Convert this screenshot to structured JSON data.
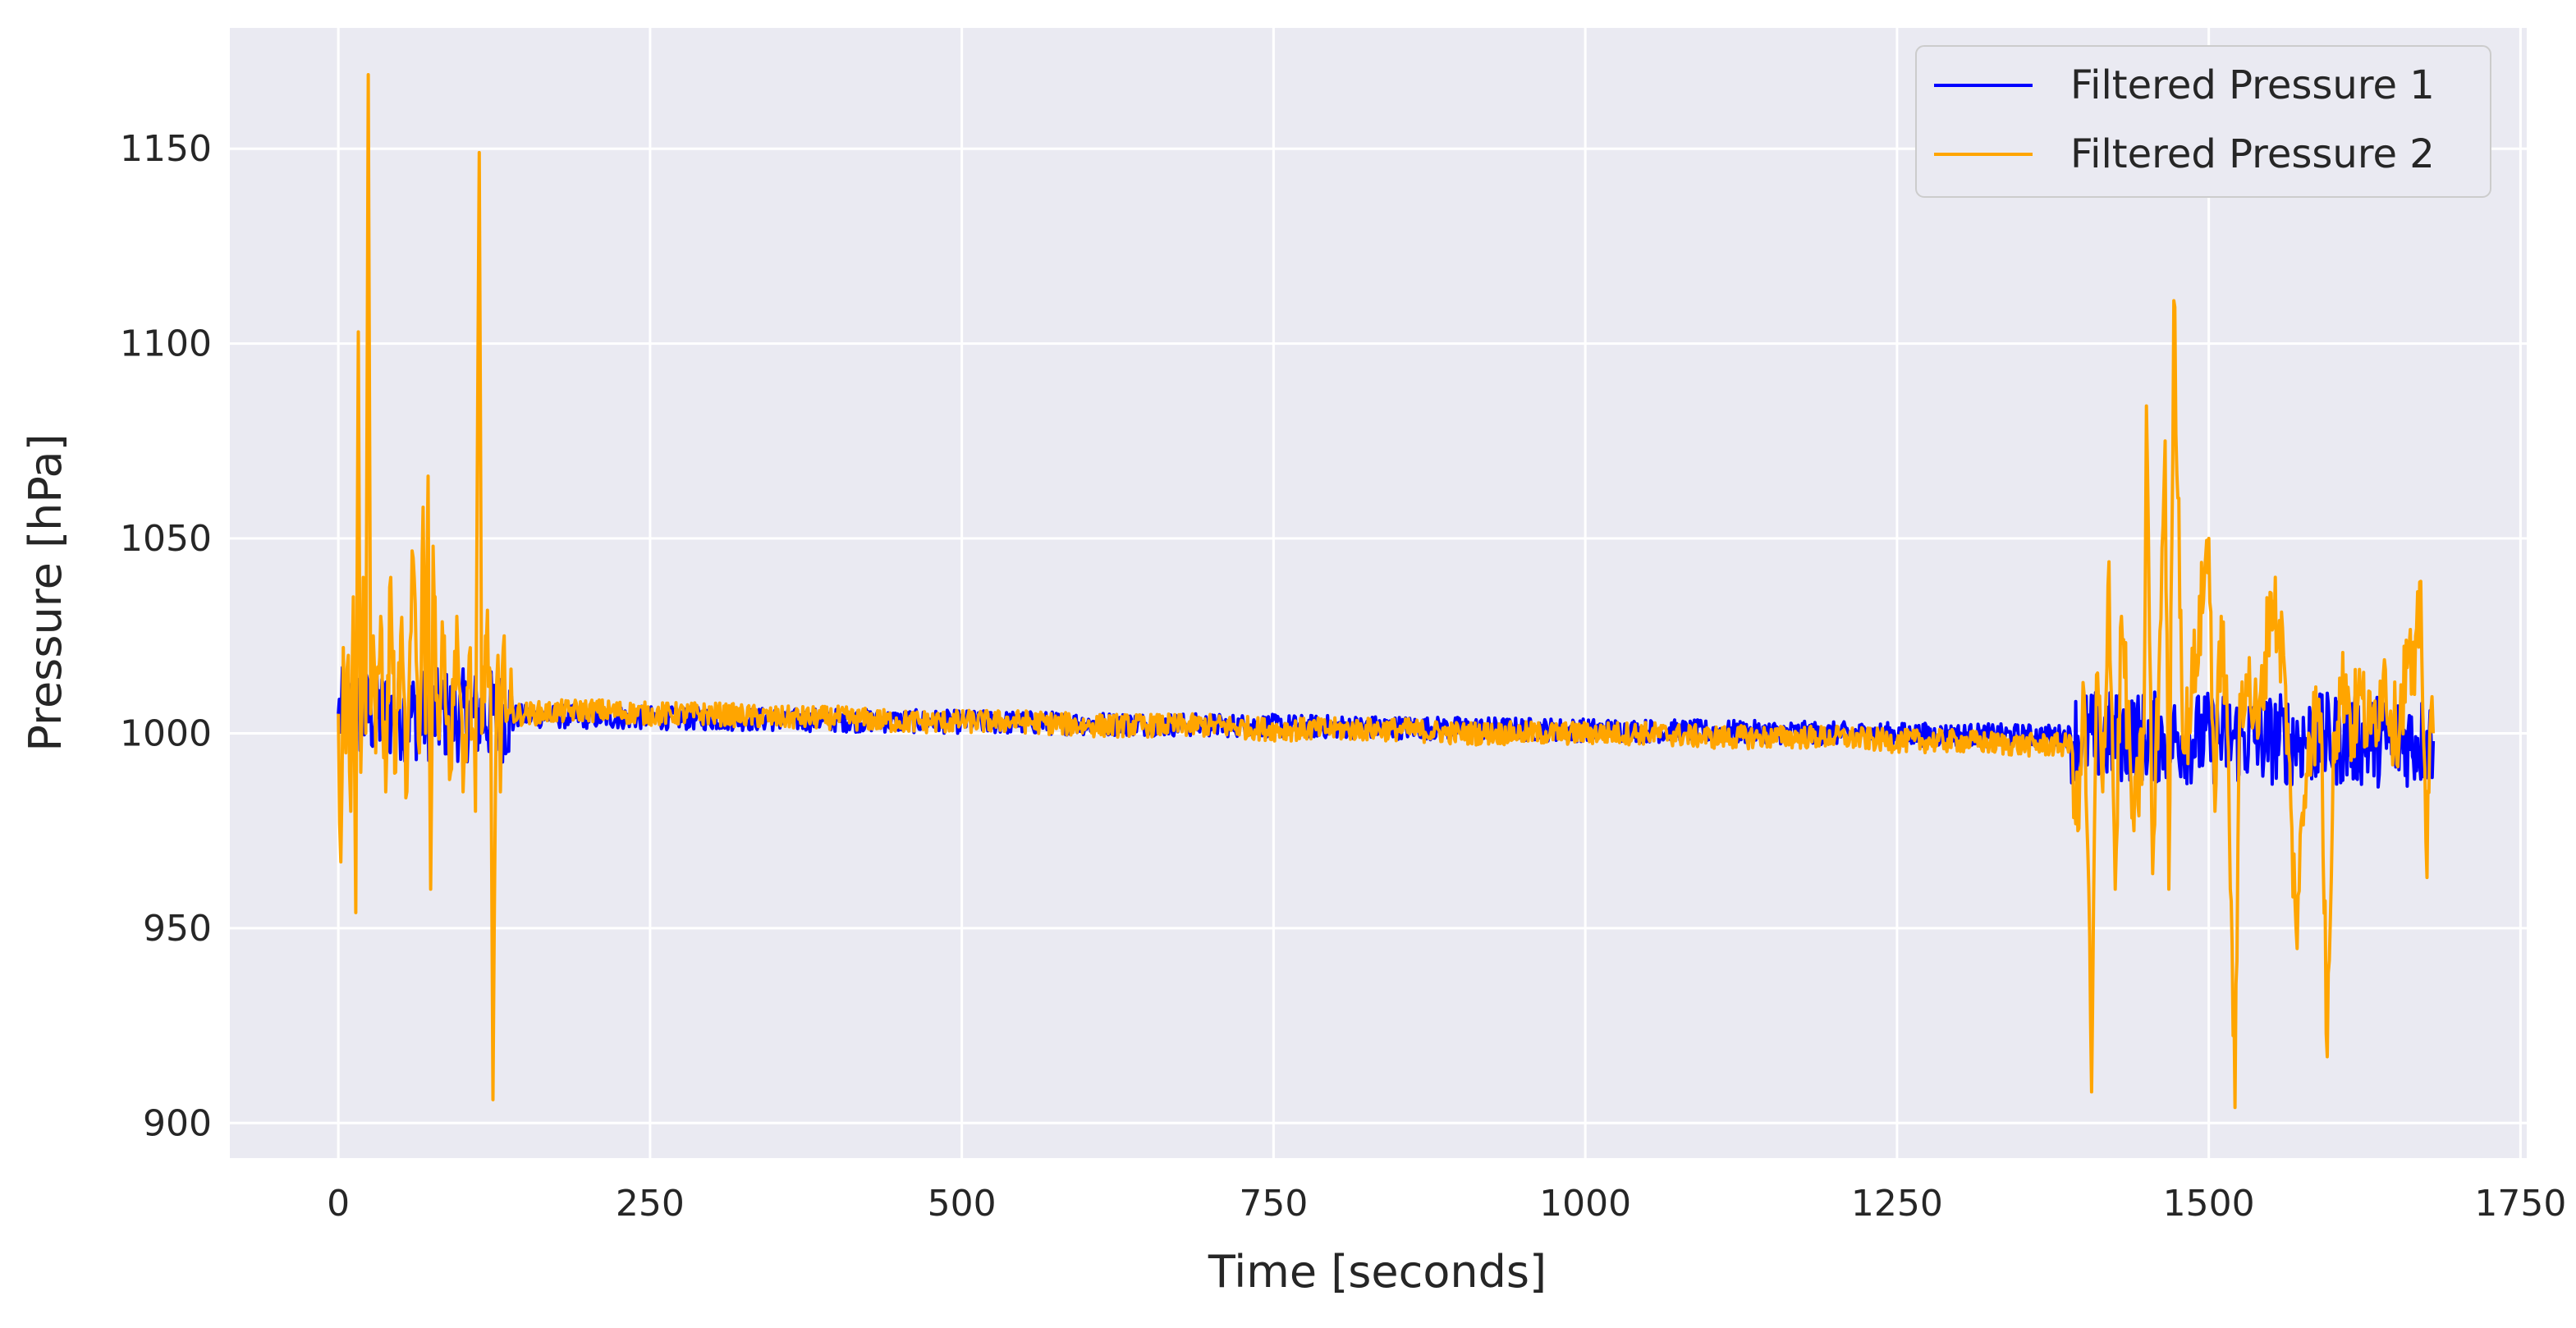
{
  "chart_data": {
    "type": "line",
    "title": "",
    "xlabel": "Time [seconds]",
    "ylabel": "Pressure [hPa]",
    "xlim": [
      -87,
      1755
    ],
    "ylim": [
      891,
      1181
    ],
    "x_ticks": [
      "0",
      "250",
      "500",
      "750",
      "1000",
      "1250",
      "1500",
      "1750"
    ],
    "y_ticks": [
      "900",
      "950",
      "1000",
      "1050",
      "1100",
      "1150"
    ],
    "grid": true,
    "legend_position": "top-right",
    "colors": {
      "plot_bg": "#EAEAF2",
      "grid": "#FFFFFF",
      "series1": "#0000FF",
      "series2": "#FFA500",
      "text": "#262626"
    },
    "series": [
      {
        "name": "Filtered Pressure 1",
        "color": "#0000FF",
        "description_values": [],
        "x": [
          0,
          1680
        ],
        "y": [
          1005,
          998
        ]
      },
      {
        "name": "Filtered Pressure 2",
        "color": "#FFA500",
        "x": [
          0,
          2,
          4,
          6,
          8,
          10,
          12,
          14,
          16,
          18,
          20,
          22,
          24,
          26,
          28,
          30,
          34,
          38,
          42,
          46,
          50,
          55,
          60,
          65,
          68,
          70,
          72,
          74,
          76,
          80,
          85,
          90,
          95,
          100,
          105,
          110,
          113,
          115,
          118,
          122,
          124,
          126,
          128,
          130,
          133,
          136,
          150,
          200,
          250,
          300,
          350,
          400,
          450,
          500,
          550,
          600,
          650,
          700,
          750,
          800,
          850,
          900,
          950,
          1000,
          1050,
          1100,
          1150,
          1200,
          1250,
          1300,
          1350,
          1390,
          1395,
          1400,
          1403,
          1406,
          1410,
          1415,
          1420,
          1425,
          1430,
          1440,
          1448,
          1450,
          1455,
          1460,
          1465,
          1468,
          1472,
          1480,
          1490,
          1500,
          1505,
          1510,
          1515,
          1518,
          1521,
          1525,
          1530,
          1540,
          1550,
          1560,
          1570,
          1580,
          1590,
          1595,
          1600,
          1610,
          1615,
          1620,
          1630,
          1640,
          1650,
          1660,
          1665,
          1670,
          1675,
          1678,
          1680
        ],
        "y": [
          1005,
          967,
          1022,
          995,
          1020,
          980,
          1035,
          954,
          1103,
          990,
          1040,
          1000,
          1169,
          1005,
          1025,
          995,
          1030,
          985,
          1040,
          990,
          1025,
          985,
          1045,
          995,
          1058,
          1000,
          1066,
          960,
          1048,
          1000,
          1025,
          990,
          1030,
          985,
          1020,
          980,
          1149,
          1000,
          1025,
          1015,
          906,
          985,
          1020,
          985,
          1025,
          1005,
          1005,
          1006,
          1005,
          1005,
          1004,
          1004,
          1003,
          1003,
          1003,
          1002,
          1002,
          1002,
          1001,
          1001,
          1001,
          1000,
          1000,
          1000,
          1000,
          999,
          999,
          999,
          998,
          998,
          997,
          997,
          975,
          1010,
          970,
          908,
          1015,
          985,
          1044,
          960,
          1030,
          975,
          1000,
          1084,
          964,
          1015,
          1075,
          960,
          1111,
          995,
          1020,
          1050,
          980,
          1030,
          1000,
          957,
          904,
          1010,
          1015,
          1000,
          1036,
          1020,
          950,
          1000,
          1005,
          917,
          1000,
          1015,
          1000,
          1010,
          1000,
          1015,
          1000,
          1020,
          1010,
          1039,
          963,
          1005,
          1000
        ]
      }
    ]
  }
}
